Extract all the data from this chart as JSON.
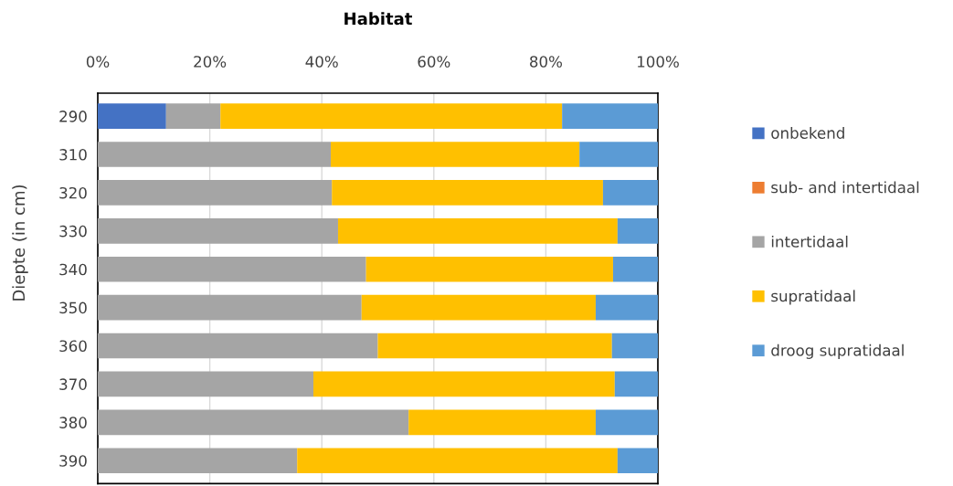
{
  "chart_data": {
    "type": "bar",
    "orientation": "horizontal",
    "stacked": true,
    "title": "Habitat",
    "ylabel": "Diepte (in cm)",
    "categories": [
      "290",
      "310",
      "320",
      "330",
      "340",
      "350",
      "360",
      "370",
      "380",
      "390"
    ],
    "series": [
      {
        "name": "onbekend",
        "color": "#4472c4",
        "values": [
          12.2,
          0,
          0,
          0,
          0,
          0,
          0,
          0,
          0,
          0
        ]
      },
      {
        "name": "sub- and intertidaal",
        "color": "#ed7d31",
        "values": [
          0,
          0,
          0,
          0,
          0,
          0,
          0,
          0,
          0,
          0
        ]
      },
      {
        "name": "intertidaal",
        "color": "#a5a5a5",
        "values": [
          9.7,
          41.6,
          41.8,
          42.9,
          47.9,
          47.1,
          50.0,
          38.5,
          55.5,
          35.6
        ]
      },
      {
        "name": "supratidaal",
        "color": "#ffc000",
        "values": [
          61.0,
          44.4,
          48.4,
          49.9,
          44.1,
          41.8,
          41.8,
          53.8,
          33.4,
          57.2
        ]
      },
      {
        "name": "droog supratidaal",
        "color": "#5b9bd5",
        "values": [
          17.1,
          14.0,
          9.8,
          7.2,
          8.0,
          11.1,
          8.2,
          7.7,
          11.1,
          7.2
        ]
      }
    ],
    "xlim": [
      0,
      100
    ],
    "xticks": [
      {
        "value": 0,
        "label": "0%"
      },
      {
        "value": 20,
        "label": "20%"
      },
      {
        "value": 40,
        "label": "40%"
      },
      {
        "value": 60,
        "label": "60%"
      },
      {
        "value": 80,
        "label": "80%"
      },
      {
        "value": 100,
        "label": "100%"
      }
    ],
    "grid": "x",
    "legend": "right"
  }
}
